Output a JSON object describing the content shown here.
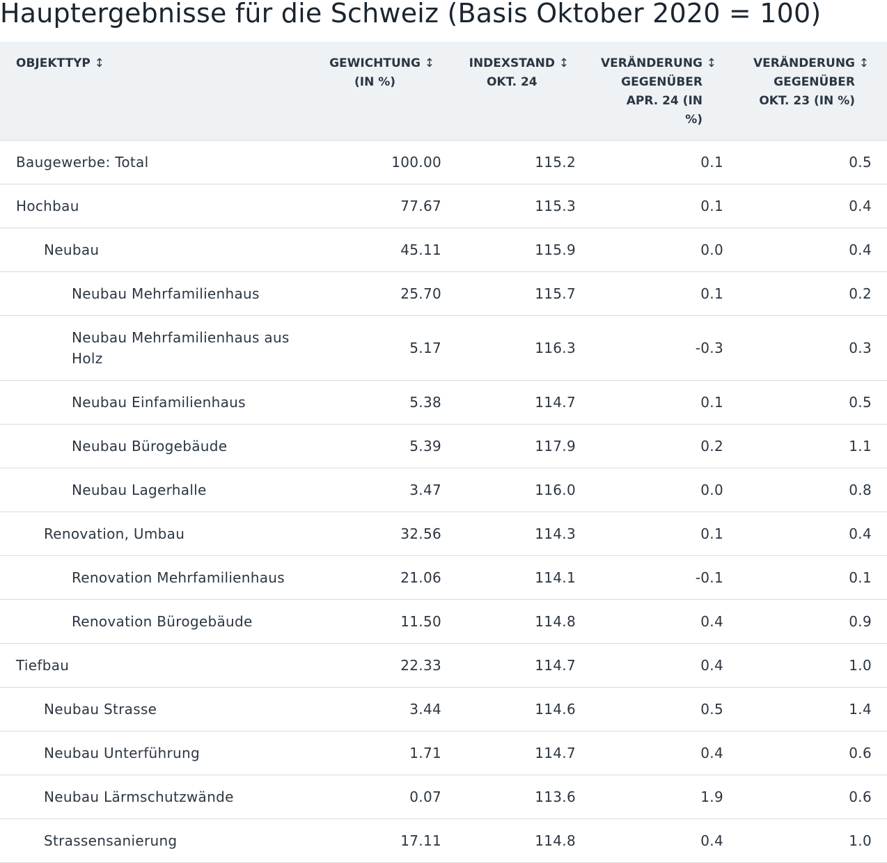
{
  "title": "Hauptergebnisse für die Schweiz (Basis Oktober 2020 = 100)",
  "sort_glyph": "↕",
  "columns": [
    {
      "label": "OBJEKTTYP"
    },
    {
      "label_line1": "GEWICHTUNG",
      "label_line2": "(IN %)"
    },
    {
      "label_line1": "INDEXSTAND",
      "label_line2": "OKT. 24"
    },
    {
      "label_line1": "VERÄNDERUNG",
      "label_line2": "GEGENÜBER",
      "label_line3": "APR. 24 (IN",
      "label_line4": "%)"
    },
    {
      "label_line1": "VERÄNDERUNG",
      "label_line2": "GEGENÜBER",
      "label_line3": "OKT. 23 (IN %)"
    }
  ],
  "rows": [
    {
      "name": "Baugewerbe: Total",
      "level": 0,
      "gewichtung": "100.00",
      "indexstand": "115.2",
      "vs_apr24": "0.1",
      "vs_okt23": "0.5"
    },
    {
      "name": "Hochbau",
      "level": 0,
      "gewichtung": "77.67",
      "indexstand": "115.3",
      "vs_apr24": "0.1",
      "vs_okt23": "0.4"
    },
    {
      "name": "Neubau",
      "level": 1,
      "gewichtung": "45.11",
      "indexstand": "115.9",
      "vs_apr24": "0.0",
      "vs_okt23": "0.4"
    },
    {
      "name": "Neubau Mehrfamilienhaus",
      "level": 2,
      "gewichtung": "25.70",
      "indexstand": "115.7",
      "vs_apr24": "0.1",
      "vs_okt23": "0.2"
    },
    {
      "name": "Neubau Mehrfamilienhaus aus Holz",
      "level": 2,
      "gewichtung": "5.17",
      "indexstand": "116.3",
      "vs_apr24": "-0.3",
      "vs_okt23": "0.3"
    },
    {
      "name": "Neubau Einfamilienhaus",
      "level": 2,
      "gewichtung": "5.38",
      "indexstand": "114.7",
      "vs_apr24": "0.1",
      "vs_okt23": "0.5"
    },
    {
      "name": "Neubau Bürogebäude",
      "level": 2,
      "gewichtung": "5.39",
      "indexstand": "117.9",
      "vs_apr24": "0.2",
      "vs_okt23": "1.1"
    },
    {
      "name": "Neubau Lagerhalle",
      "level": 2,
      "gewichtung": "3.47",
      "indexstand": "116.0",
      "vs_apr24": "0.0",
      "vs_okt23": "0.8"
    },
    {
      "name": "Renovation, Umbau",
      "level": 1,
      "gewichtung": "32.56",
      "indexstand": "114.3",
      "vs_apr24": "0.1",
      "vs_okt23": "0.4"
    },
    {
      "name": "Renovation Mehrfamilienhaus",
      "level": 2,
      "gewichtung": "21.06",
      "indexstand": "114.1",
      "vs_apr24": "-0.1",
      "vs_okt23": "0.1"
    },
    {
      "name": "Renovation Bürogebäude",
      "level": 2,
      "gewichtung": "11.50",
      "indexstand": "114.8",
      "vs_apr24": "0.4",
      "vs_okt23": "0.9"
    },
    {
      "name": "Tiefbau",
      "level": 0,
      "gewichtung": "22.33",
      "indexstand": "114.7",
      "vs_apr24": "0.4",
      "vs_okt23": "1.0"
    },
    {
      "name": "Neubau Strasse",
      "level": 1,
      "gewichtung": "3.44",
      "indexstand": "114.6",
      "vs_apr24": "0.5",
      "vs_okt23": "1.4"
    },
    {
      "name": "Neubau Unterführung",
      "level": 1,
      "gewichtung": "1.71",
      "indexstand": "114.7",
      "vs_apr24": "0.4",
      "vs_okt23": "0.6"
    },
    {
      "name": "Neubau Lärmschutzwände",
      "level": 1,
      "gewichtung": "0.07",
      "indexstand": "113.6",
      "vs_apr24": "1.9",
      "vs_okt23": "0.6"
    },
    {
      "name": "Strassensanierung",
      "level": 1,
      "gewichtung": "17.11",
      "indexstand": "114.8",
      "vs_apr24": "0.4",
      "vs_okt23": "1.0"
    }
  ]
}
